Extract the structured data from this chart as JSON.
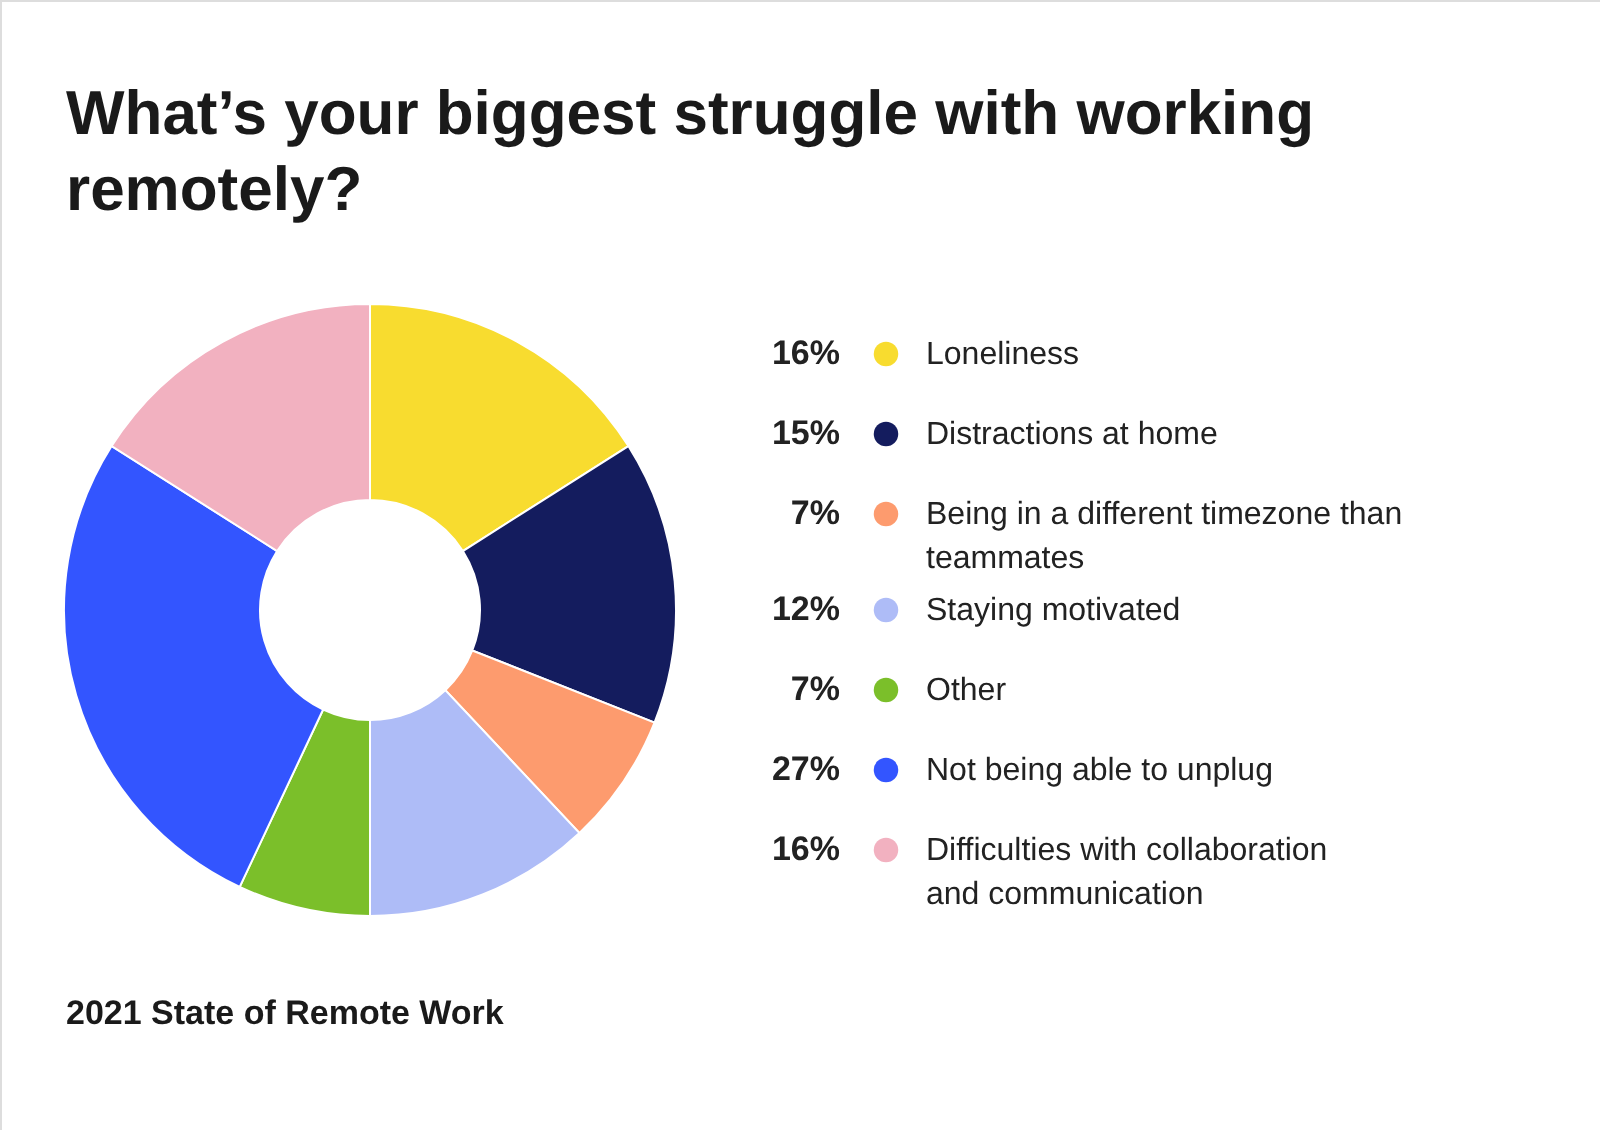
{
  "chart_data": {
    "type": "donut",
    "title": "What’s your biggest struggle with working remotely?",
    "categories": [
      "Loneliness",
      "Distractions at home",
      "Being in a different timezone than\nteammates",
      "Staying motivated",
      "Other",
      "Not being able to unplug",
      "Difficulties with collaboration\nand communication"
    ],
    "values": [
      16,
      15,
      7,
      12,
      7,
      27,
      16
    ],
    "value_labels": [
      "16%",
      "15%",
      "7%",
      "12%",
      "7%",
      "27%",
      "16%"
    ],
    "colors": [
      "#f8dc2f",
      "#141c5e",
      "#fd9b6e",
      "#aebcf7",
      "#7bbf2a",
      "#3355ff",
      "#f2b1c0"
    ],
    "legend": "right",
    "annotations": [
      "2021 State of Remote Work"
    ]
  }
}
